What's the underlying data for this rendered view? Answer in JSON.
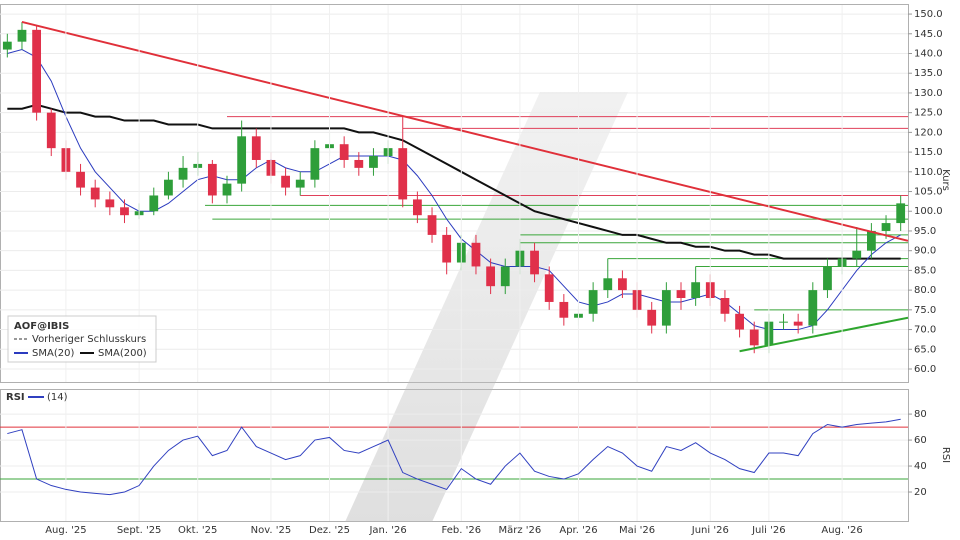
{
  "chart_data": [
    {
      "type": "candlestick",
      "title": "AOF@IBIS",
      "ylabel": "Kurs",
      "ylim": [
        56.7,
        152.3
      ],
      "yticks": [
        {
          "value": 60,
          "label": "60.0"
        },
        {
          "value": 65,
          "label": "65.0"
        },
        {
          "value": 70,
          "label": "70.0"
        },
        {
          "value": 75,
          "label": "75.0"
        },
        {
          "value": 80,
          "label": "80.0"
        },
        {
          "value": 85,
          "label": "85.0"
        },
        {
          "value": 90,
          "label": "90.0"
        },
        {
          "value": 95,
          "label": "95.0"
        },
        {
          "value": 100,
          "label": "100.0"
        },
        {
          "value": 105,
          "label": "105.0"
        },
        {
          "value": 110,
          "label": "110.0"
        },
        {
          "value": 115,
          "label": "115.0"
        },
        {
          "value": 120,
          "label": "120.0"
        },
        {
          "value": 125,
          "label": "125.0"
        },
        {
          "value": 130,
          "label": "130.0"
        },
        {
          "value": 135,
          "label": "135.0"
        },
        {
          "value": 140,
          "label": "140.0"
        },
        {
          "value": 145,
          "label": "145.0"
        },
        {
          "value": 150,
          "label": "150.0"
        }
      ],
      "grid": true,
      "up_color": "#2e9e3a",
      "down_color": "#e0304a",
      "open": [
        141,
        143,
        146,
        125,
        116,
        110,
        106,
        103,
        101,
        99,
        100,
        104,
        108,
        111,
        112,
        104,
        107,
        119,
        113,
        109,
        106,
        108,
        116,
        117,
        113,
        111,
        114,
        116,
        103,
        99,
        94,
        87,
        92,
        86,
        81,
        86,
        90,
        84,
        77,
        73,
        74,
        80,
        83,
        80,
        75,
        71,
        80,
        78,
        82,
        78,
        74,
        70,
        66,
        72,
        72,
        71,
        80,
        86,
        88,
        90,
        95,
        97
      ],
      "high": [
        145,
        148,
        147,
        126,
        118,
        112,
        108,
        105,
        103,
        102,
        106,
        110,
        114,
        115,
        113,
        109,
        123,
        121,
        115,
        111,
        110,
        118,
        120,
        119,
        115,
        116,
        118,
        124,
        105,
        101,
        96,
        94,
        94,
        88,
        88,
        93,
        92,
        86,
        79,
        76,
        82,
        88,
        85,
        82,
        77,
        82,
        82,
        86,
        84,
        80,
        76,
        72,
        74,
        74,
        74,
        82,
        88,
        90,
        96,
        97,
        99,
        104
      ],
      "low": [
        139,
        141,
        123,
        114,
        108,
        104,
        101,
        99,
        97,
        98,
        99,
        103,
        106,
        109,
        102,
        102,
        105,
        111,
        107,
        104,
        104,
        106,
        114,
        111,
        109,
        109,
        112,
        101,
        97,
        92,
        84,
        85,
        84,
        79,
        79,
        84,
        82,
        75,
        71,
        71,
        72,
        78,
        78,
        73,
        69,
        69,
        75,
        76,
        76,
        72,
        68,
        64,
        64,
        70,
        69,
        69,
        78,
        84,
        86,
        88,
        93,
        95
      ],
      "close": [
        143,
        146,
        125,
        116,
        110,
        106,
        103,
        101,
        99,
        100,
        104,
        108,
        111,
        112,
        104,
        107,
        119,
        113,
        109,
        106,
        108,
        116,
        117,
        113,
        111,
        114,
        116,
        103,
        99,
        94,
        87,
        92,
        86,
        81,
        86,
        90,
        84,
        77,
        73,
        74,
        80,
        83,
        80,
        75,
        71,
        80,
        78,
        82,
        78,
        74,
        70,
        66,
        72,
        72,
        71,
        80,
        86,
        88,
        90,
        95,
        97,
        102
      ],
      "series": [
        {
          "name": "Vorheriger Schlusskurs",
          "color": "#333333",
          "dashed": true
        },
        {
          "name": "SMA(20)",
          "color": "#2b3bbf",
          "values": [
            140,
            141,
            139,
            133,
            124,
            116,
            110,
            106,
            102,
            100,
            100,
            102,
            105,
            108,
            109,
            108,
            108,
            111,
            113,
            111,
            110,
            110,
            112,
            114,
            114,
            114,
            114,
            113,
            109,
            104,
            98,
            93,
            90,
            87,
            86,
            86,
            86,
            85,
            81,
            77,
            76,
            77,
            79,
            79,
            78,
            77,
            77,
            78,
            79,
            77,
            74,
            71,
            70,
            70,
            70,
            71,
            75,
            80,
            85,
            89,
            92,
            94
          ]
        },
        {
          "name": "SMA(200)",
          "color": "#111111",
          "values": [
            126,
            126,
            127,
            126,
            125,
            125,
            124,
            124,
            123,
            123,
            123,
            122,
            122,
            122,
            121,
            121,
            121,
            121,
            121,
            121,
            121,
            121,
            121,
            121,
            120,
            120,
            119,
            118,
            116,
            114,
            112,
            110,
            108,
            106,
            104,
            102,
            100,
            99,
            98,
            97,
            96,
            95,
            94,
            94,
            93,
            92,
            92,
            91,
            91,
            90,
            90,
            89,
            89,
            88,
            88,
            88,
            88,
            88,
            88,
            88,
            88,
            88
          ]
        }
      ],
      "levels": [
        {
          "value": 124,
          "start": 15,
          "color": "#e0405a"
        },
        {
          "value": 121,
          "start": 27,
          "color": "#e0405a"
        },
        {
          "value": 104,
          "start": 20,
          "color": "#e0405a"
        },
        {
          "value": 101.5,
          "start": 13.5,
          "color": "#3aa63a"
        },
        {
          "value": 98,
          "start": 14,
          "color": "#3aa63a"
        },
        {
          "value": 94,
          "start": 35,
          "color": "#3aa63a"
        },
        {
          "value": 92,
          "start": 35,
          "color": "#3aa63a"
        },
        {
          "value": 88,
          "start": 41,
          "color": "#3aa63a"
        },
        {
          "value": 86,
          "start": 47,
          "color": "#3aa63a"
        },
        {
          "value": 75,
          "start": 51,
          "color": "#3aa63a"
        }
      ],
      "trendlines": [
        {
          "color": "#e0303a",
          "x": [
            1,
            61.5
          ],
          "values": [
            148,
            92.5
          ]
        },
        {
          "color": "#2ea62e",
          "x": [
            50,
            61.5
          ],
          "values": [
            64.5,
            73
          ]
        }
      ]
    },
    {
      "type": "line",
      "title": "RSI",
      "ylabel": "RSI",
      "ylim": [
        0,
        87
      ],
      "yticks": [
        20,
        40,
        60,
        80
      ],
      "grid": true,
      "categories": [
        null,
        null,
        null,
        null,
        "Aug. '25",
        null,
        null,
        null,
        null,
        "Sept. '25",
        null,
        null,
        null,
        "Okt. '25",
        null,
        null,
        null,
        null,
        "Nov. '25",
        null,
        null,
        null,
        "Dez. '25",
        null,
        null,
        null,
        "Jan. '26",
        null,
        null,
        null,
        null,
        "Feb. '26",
        null,
        null,
        null,
        "März '26",
        null,
        null,
        null,
        "Apr. '26",
        null,
        null,
        null,
        "Mai '26",
        null,
        null,
        null,
        null,
        "Juni '26",
        null,
        null,
        null,
        "Juli '26",
        null,
        null,
        null,
        null,
        "Aug. '26",
        null,
        null,
        null,
        null
      ],
      "series": [
        {
          "name": "(14)",
          "color": "#3040c0",
          "values": [
            65,
            68,
            30,
            25,
            22,
            20,
            19,
            18,
            20,
            25,
            40,
            52,
            60,
            63,
            48,
            52,
            70,
            55,
            50,
            45,
            48,
            60,
            62,
            52,
            50,
            55,
            60,
            35,
            30,
            26,
            22,
            38,
            30,
            26,
            40,
            50,
            36,
            32,
            30,
            34,
            45,
            55,
            50,
            40,
            36,
            55,
            52,
            58,
            50,
            45,
            38,
            35,
            50,
            50,
            48,
            65,
            72,
            70,
            72,
            73,
            74,
            76
          ]
        }
      ],
      "levels": [
        {
          "value": 70,
          "color": "#e0303a"
        },
        {
          "value": 30,
          "color": "#3aa63a"
        }
      ]
    }
  ]
}
